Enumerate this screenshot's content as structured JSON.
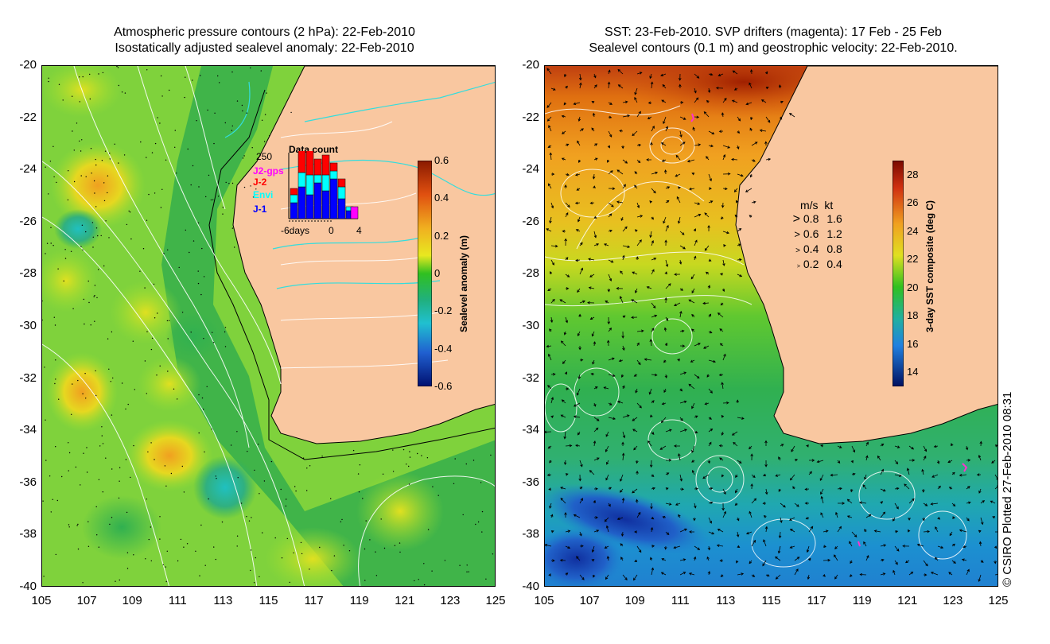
{
  "left_panel": {
    "title_line1": "Atmospheric pressure contours (2 hPa): 22-Feb-2010",
    "title_line2": "Isostatically adjusted sealevel anomaly: 22-Feb-2010",
    "colorbar": {
      "title": "Sealevel anomaly (m)",
      "ticks": [
        "0.6",
        "0.4",
        "0.2",
        "0",
        "-0.2",
        "-0.4",
        "-0.6"
      ],
      "range": [
        -0.6,
        0.6
      ]
    },
    "inset": {
      "title": "Data count",
      "y_max": "250",
      "x_labels": [
        "-6days",
        "0",
        "4"
      ],
      "legend": [
        {
          "label": "J2-gps",
          "color": "#ff00ff"
        },
        {
          "label": "J-2",
          "color": "#ff0000"
        },
        {
          "label": "Envi",
          "color": "#00ffff"
        },
        {
          "label": "J-1",
          "color": "#0000ff"
        }
      ]
    }
  },
  "right_panel": {
    "title_line1": "SST: 23-Feb-2010. SVP drifters (magenta): 17 Feb - 25 Feb",
    "title_line2": "Sealevel contours (0.1 m) and geostrophic velocity: 22-Feb-2010.",
    "colorbar": {
      "title": "3-day SST composite (deg C)",
      "ticks": [
        "28",
        "26",
        "24",
        "22",
        "20",
        "18",
        "16",
        "14"
      ],
      "range": [
        13,
        29
      ]
    },
    "velocity_key": {
      "header_ms": "m/s",
      "header_kt": "kt",
      "rows": [
        {
          "ms": "0.8",
          "kt": "1.6"
        },
        {
          "ms": "0.6",
          "kt": "1.2"
        },
        {
          "ms": "0.4",
          "kt": "0.8"
        },
        {
          "ms": "0.2",
          "kt": "0.4"
        }
      ]
    }
  },
  "axes": {
    "y_ticks": [
      "-20",
      "-22",
      "-24",
      "-26",
      "-28",
      "-30",
      "-32",
      "-34",
      "-36",
      "-38",
      "-40"
    ],
    "x_ticks": [
      "105",
      "107",
      "109",
      "111",
      "113",
      "115",
      "117",
      "119",
      "121",
      "123",
      "125"
    ],
    "lat_range": [
      -40,
      -20
    ],
    "lon_range": [
      105,
      125
    ]
  },
  "credit": "© CSIRO Plotted 27-Feb-2010 08:31",
  "colors": {
    "land": "#f9c7a0",
    "coastline": "#000000",
    "pressure_contour": "#ffffff",
    "shelf_contour": "#33dddd",
    "drifter": "#ff33cc"
  }
}
